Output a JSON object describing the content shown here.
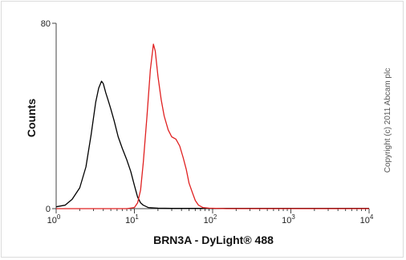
{
  "chart_data": {
    "type": "line",
    "title": "",
    "xlabel": "BRN3A - DyLight® 488",
    "ylabel": "Counts",
    "x_scale": "log",
    "xlim": [
      1,
      10000
    ],
    "ylim": [
      0,
      80
    ],
    "x_ticks": [
      {
        "value": 1,
        "mantissa": "10",
        "exp": "0"
      },
      {
        "value": 10,
        "mantissa": "10",
        "exp": "1"
      },
      {
        "value": 100,
        "mantissa": "10",
        "exp": "2"
      },
      {
        "value": 1000,
        "mantissa": "10",
        "exp": "3"
      },
      {
        "value": 10000,
        "mantissa": "10",
        "exp": "4"
      }
    ],
    "y_ticks": [
      0,
      80
    ],
    "grid": false,
    "series": [
      {
        "color": "#000000",
        "points": [
          [
            1.0,
            0.8
          ],
          [
            1.3,
            1.5
          ],
          [
            1.6,
            4
          ],
          [
            2.0,
            9
          ],
          [
            2.4,
            18
          ],
          [
            2.8,
            32
          ],
          [
            3.2,
            46
          ],
          [
            3.5,
            52
          ],
          [
            3.8,
            55
          ],
          [
            4.0,
            54
          ],
          [
            4.3,
            50
          ],
          [
            4.6,
            47
          ],
          [
            5.0,
            43
          ],
          [
            5.5,
            38
          ],
          [
            6.2,
            31
          ],
          [
            7.0,
            26
          ],
          [
            8.0,
            21
          ],
          [
            9.0,
            16
          ],
          [
            10.0,
            10
          ],
          [
            11.0,
            5
          ],
          [
            12.0,
            2.5
          ],
          [
            13.0,
            1.5
          ],
          [
            15.0,
            0.5
          ],
          [
            20.0,
            0.2
          ],
          [
            30.0,
            0.1
          ],
          [
            10000,
            0.1
          ]
        ]
      },
      {
        "color": "#e02020",
        "points": [
          [
            1.0,
            0
          ],
          [
            8.0,
            0
          ],
          [
            10.0,
            0.5
          ],
          [
            11.0,
            2.5
          ],
          [
            12.0,
            8
          ],
          [
            13.0,
            20
          ],
          [
            14.5,
            40
          ],
          [
            16.0,
            60
          ],
          [
            17.5,
            71
          ],
          [
            18.5,
            68
          ],
          [
            20.0,
            57
          ],
          [
            22.0,
            47
          ],
          [
            24.0,
            40
          ],
          [
            27.0,
            34
          ],
          [
            30.0,
            31
          ],
          [
            34.0,
            30
          ],
          [
            38.0,
            27
          ],
          [
            42.0,
            22
          ],
          [
            46.0,
            17
          ],
          [
            50.0,
            11
          ],
          [
            55.0,
            7
          ],
          [
            60.0,
            3.5
          ],
          [
            66.0,
            1.5
          ],
          [
            75.0,
            0.5
          ],
          [
            90.0,
            0.2
          ],
          [
            150.0,
            0
          ],
          [
            10000,
            0
          ]
        ]
      }
    ]
  },
  "watermark": "Copyright (c) 2011 Abcam plc"
}
